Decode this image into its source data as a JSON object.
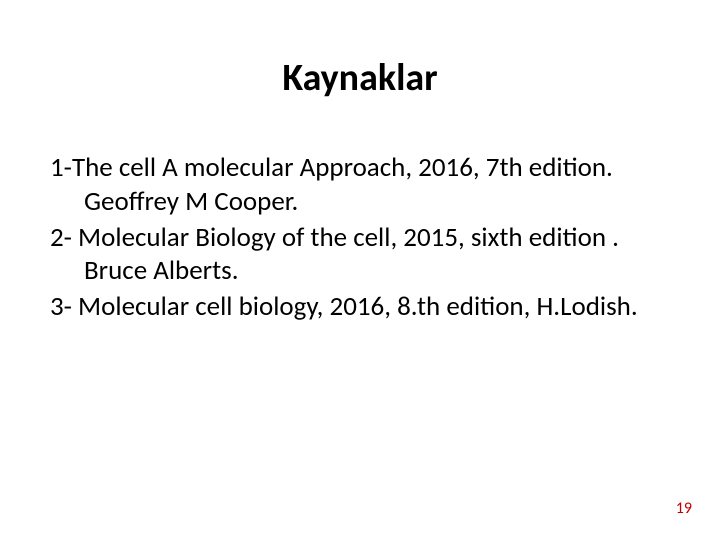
{
  "slide": {
    "title": "Kaynaklar",
    "references": [
      "1-The cell A molecular Approach, 2016, 7th edition. Geoffrey M Cooper.",
      "2- Molecular Biology of the cell, 2015, sixth edition . Bruce Alberts.",
      "3- Molecular cell biology, 2016, 8.th edition, H.Lodish."
    ],
    "page_number": "19",
    "colors": {
      "background": "#ffffff",
      "title_color": "#000000",
      "body_color": "#000000",
      "page_number_color": "#c00000"
    },
    "typography": {
      "title_fontsize": 38,
      "title_weight": "bold",
      "body_fontsize": 27,
      "page_number_fontsize": 16,
      "font_family": "Calibri"
    }
  }
}
